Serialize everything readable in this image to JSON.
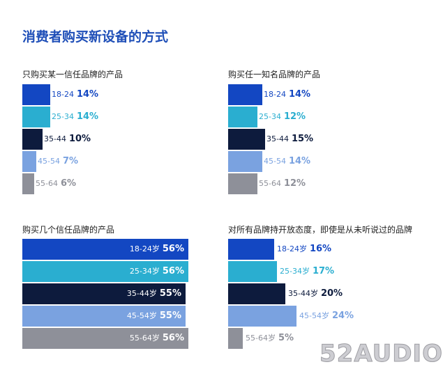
{
  "title": "消费者购买新设备的方式",
  "watermark": "52AUDIO",
  "colors": [
    "#1347c2",
    "#2aaed0",
    "#0d1b3d",
    "#7aa2e0",
    "#8e9099"
  ],
  "label_colors": [
    "#1347c2",
    "#2aaed0",
    "#0d1b3d",
    "#7aa2e0",
    "#8e9099"
  ],
  "chart_data": [
    {
      "type": "bar",
      "orientation": "horizontal",
      "title": "只购买某一信任品牌的产品",
      "categories": [
        "18-24",
        "25-34",
        "35-44",
        "45-54",
        "55-64"
      ],
      "values": [
        14,
        14,
        10,
        7,
        6
      ],
      "value_labels": [
        "14%",
        "14%",
        "10%",
        "7%",
        "6%"
      ],
      "label_position": "outside"
    },
    {
      "type": "bar",
      "orientation": "horizontal",
      "title": "购买任一知名品牌的产品",
      "categories": [
        "18-24",
        "25-34",
        "35-44",
        "45-54",
        "55-64"
      ],
      "values": [
        14,
        12,
        15,
        14,
        12
      ],
      "value_labels": [
        "14%",
        "12%",
        "15%",
        "14%",
        "12%"
      ],
      "label_position": "outside"
    },
    {
      "type": "bar",
      "orientation": "horizontal",
      "title": "购买几个信任品牌的产品",
      "categories": [
        "18-24岁",
        "25-34岁",
        "35-44岁",
        "45-54岁",
        "55-64岁"
      ],
      "values": [
        56,
        56,
        55,
        55,
        56
      ],
      "value_labels": [
        "56%",
        "56%",
        "55%",
        "55%",
        "56%"
      ],
      "label_position": "inside"
    },
    {
      "type": "bar",
      "orientation": "horizontal",
      "title": "对所有品牌持开放态度，即使是从未听说过的品牌",
      "categories": [
        "18-24岁",
        "25-34岁",
        "35-44岁",
        "45-54岁",
        "55-64岁"
      ],
      "values": [
        16,
        17,
        20,
        24,
        5
      ],
      "value_labels": [
        "16%",
        "17%",
        "20%",
        "24%",
        "5%"
      ],
      "label_position": "outside"
    }
  ]
}
